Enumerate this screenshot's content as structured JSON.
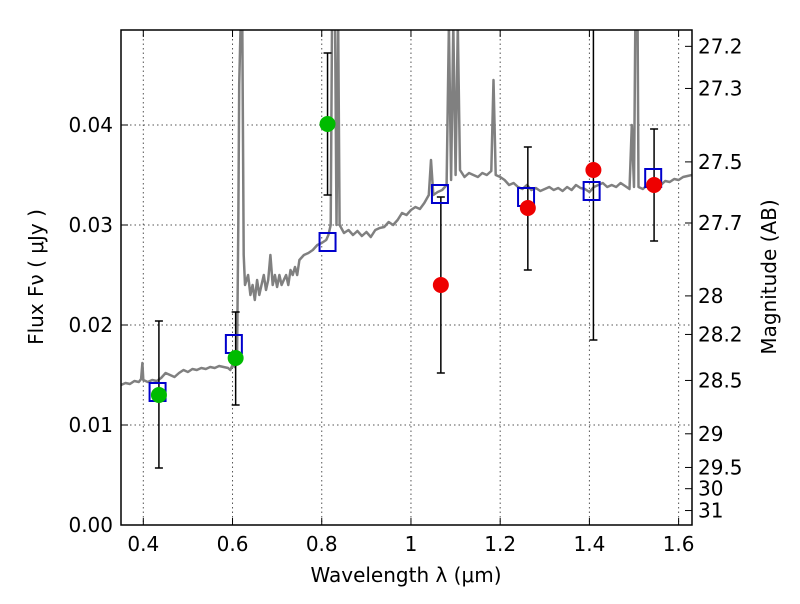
{
  "chart_data": {
    "type": "scatter",
    "xlabel": "Wavelength  λ (μm)",
    "ylabel": "Flux  Fν  ( μJy )",
    "y2label": "Magnitude (AB)",
    "xlim": [
      0.35,
      1.63
    ],
    "ylim": [
      0.0,
      0.0495
    ],
    "grid": true,
    "x_ticks": [
      {
        "value": 0.4,
        "label": "0.4"
      },
      {
        "value": 0.6,
        "label": "0.6"
      },
      {
        "value": 0.8,
        "label": "0.8"
      },
      {
        "value": 1.0,
        "label": "1"
      },
      {
        "value": 1.2,
        "label": "1.2"
      },
      {
        "value": 1.4,
        "label": "1.4"
      },
      {
        "value": 1.6,
        "label": "1.6"
      }
    ],
    "y_ticks": [
      {
        "value": 0.0,
        "label": "0.00"
      },
      {
        "value": 0.01,
        "label": "0.01"
      },
      {
        "value": 0.02,
        "label": "0.02"
      },
      {
        "value": 0.03,
        "label": "0.03"
      },
      {
        "value": 0.04,
        "label": "0.04"
      }
    ],
    "mag_ticks": [
      {
        "value": 27.2,
        "label": "27.2"
      },
      {
        "value": 27.3,
        "label": "27.3"
      },
      {
        "value": 27.5,
        "label": "27.5"
      },
      {
        "value": 27.7,
        "label": "27.7"
      },
      {
        "value": 28.0,
        "label": "28"
      },
      {
        "value": 28.2,
        "label": "28.2"
      },
      {
        "value": 28.5,
        "label": "28.5"
      },
      {
        "value": 29.0,
        "label": "29"
      },
      {
        "value": 29.5,
        "label": "29.5"
      },
      {
        "value": 30.0,
        "label": "30"
      },
      {
        "value": 31.0,
        "label": "31"
      }
    ],
    "colors": {
      "spectrum": "#808080",
      "model_box": "#0000cc",
      "green_point": "#00bb00",
      "red_point": "#ee0000",
      "errorbar": "#000000",
      "grid": "#555555"
    },
    "spectrum": [
      [
        0.35,
        0.014
      ],
      [
        0.36,
        0.0142
      ],
      [
        0.37,
        0.0141
      ],
      [
        0.38,
        0.0144
      ],
      [
        0.39,
        0.0143
      ],
      [
        0.395,
        0.0146
      ],
      [
        0.398,
        0.0162
      ],
      [
        0.4,
        0.0145
      ],
      [
        0.41,
        0.0143
      ],
      [
        0.42,
        0.0145
      ],
      [
        0.43,
        0.0144
      ],
      [
        0.44,
        0.0147
      ],
      [
        0.45,
        0.0152
      ],
      [
        0.46,
        0.015
      ],
      [
        0.47,
        0.0148
      ],
      [
        0.48,
        0.0152
      ],
      [
        0.49,
        0.0155
      ],
      [
        0.5,
        0.0153
      ],
      [
        0.51,
        0.0156
      ],
      [
        0.52,
        0.0155
      ],
      [
        0.53,
        0.0157
      ],
      [
        0.54,
        0.0156
      ],
      [
        0.55,
        0.0158
      ],
      [
        0.56,
        0.0157
      ],
      [
        0.57,
        0.0159
      ],
      [
        0.58,
        0.0158
      ],
      [
        0.59,
        0.0157
      ],
      [
        0.595,
        0.0155
      ],
      [
        0.6,
        0.016
      ],
      [
        0.605,
        0.0158
      ],
      [
        0.61,
        0.0162
      ],
      [
        0.613,
        0.03
      ],
      [
        0.615,
        0.044
      ],
      [
        0.618,
        0.05
      ],
      [
        0.622,
        0.05
      ],
      [
        0.625,
        0.027
      ],
      [
        0.628,
        0.024
      ],
      [
        0.635,
        0.025
      ],
      [
        0.64,
        0.023
      ],
      [
        0.645,
        0.024
      ],
      [
        0.65,
        0.0225
      ],
      [
        0.655,
        0.0245
      ],
      [
        0.66,
        0.023
      ],
      [
        0.665,
        0.024
      ],
      [
        0.67,
        0.025
      ],
      [
        0.675,
        0.0235
      ],
      [
        0.68,
        0.0245
      ],
      [
        0.685,
        0.027
      ],
      [
        0.69,
        0.024
      ],
      [
        0.695,
        0.025
      ],
      [
        0.7,
        0.0238
      ],
      [
        0.705,
        0.025
      ],
      [
        0.71,
        0.024
      ],
      [
        0.715,
        0.0245
      ],
      [
        0.72,
        0.025
      ],
      [
        0.725,
        0.024
      ],
      [
        0.73,
        0.0255
      ],
      [
        0.735,
        0.025
      ],
      [
        0.74,
        0.0258
      ],
      [
        0.745,
        0.025
      ],
      [
        0.75,
        0.0265
      ],
      [
        0.76,
        0.027
      ],
      [
        0.77,
        0.0272
      ],
      [
        0.78,
        0.0275
      ],
      [
        0.79,
        0.028
      ],
      [
        0.8,
        0.0282
      ],
      [
        0.81,
        0.0285
      ],
      [
        0.815,
        0.029
      ],
      [
        0.82,
        0.03
      ],
      [
        0.823,
        0.05
      ],
      [
        0.83,
        0.05
      ],
      [
        0.833,
        0.03
      ],
      [
        0.837,
        0.05
      ],
      [
        0.84,
        0.03
      ],
      [
        0.85,
        0.0292
      ],
      [
        0.86,
        0.0295
      ],
      [
        0.87,
        0.029
      ],
      [
        0.88,
        0.0294
      ],
      [
        0.89,
        0.0289
      ],
      [
        0.9,
        0.0293
      ],
      [
        0.91,
        0.0288
      ],
      [
        0.92,
        0.0295
      ],
      [
        0.93,
        0.0297
      ],
      [
        0.94,
        0.0298
      ],
      [
        0.95,
        0.0303
      ],
      [
        0.96,
        0.03
      ],
      [
        0.97,
        0.0305
      ],
      [
        0.98,
        0.0312
      ],
      [
        0.99,
        0.031
      ],
      [
        1.0,
        0.0315
      ],
      [
        1.01,
        0.0318
      ],
      [
        1.02,
        0.0316
      ],
      [
        1.03,
        0.0322
      ],
      [
        1.04,
        0.033
      ],
      [
        1.045,
        0.0365
      ],
      [
        1.05,
        0.033
      ],
      [
        1.06,
        0.0333
      ],
      [
        1.07,
        0.0335
      ],
      [
        1.08,
        0.034
      ],
      [
        1.085,
        0.05
      ],
      [
        1.09,
        0.0345
      ],
      [
        1.095,
        0.05
      ],
      [
        1.1,
        0.035
      ],
      [
        1.105,
        0.05
      ],
      [
        1.11,
        0.0355
      ],
      [
        1.12,
        0.0348
      ],
      [
        1.13,
        0.0352
      ],
      [
        1.14,
        0.035
      ],
      [
        1.15,
        0.0348
      ],
      [
        1.16,
        0.0352
      ],
      [
        1.17,
        0.035
      ],
      [
        1.18,
        0.0354
      ],
      [
        1.185,
        0.0445
      ],
      [
        1.19,
        0.035
      ],
      [
        1.2,
        0.0348
      ],
      [
        1.21,
        0.0345
      ],
      [
        1.22,
        0.034
      ],
      [
        1.23,
        0.0342
      ],
      [
        1.24,
        0.0338
      ],
      [
        1.25,
        0.0336
      ],
      [
        1.26,
        0.034
      ],
      [
        1.27,
        0.0335
      ],
      [
        1.28,
        0.0337
      ],
      [
        1.29,
        0.0334
      ],
      [
        1.3,
        0.0336
      ],
      [
        1.31,
        0.0338
      ],
      [
        1.32,
        0.0335
      ],
      [
        1.33,
        0.0337
      ],
      [
        1.34,
        0.0334
      ],
      [
        1.35,
        0.0338
      ],
      [
        1.36,
        0.0335
      ],
      [
        1.37,
        0.034
      ],
      [
        1.38,
        0.0337
      ],
      [
        1.39,
        0.0336
      ],
      [
        1.4,
        0.0333
      ],
      [
        1.41,
        0.0338
      ],
      [
        1.42,
        0.034
      ],
      [
        1.43,
        0.0342
      ],
      [
        1.44,
        0.0338
      ],
      [
        1.45,
        0.034
      ],
      [
        1.46,
        0.0338
      ],
      [
        1.47,
        0.0342
      ],
      [
        1.48,
        0.0339
      ],
      [
        1.49,
        0.0336
      ],
      [
        1.495,
        0.04
      ],
      [
        1.5,
        0.0338
      ],
      [
        1.503,
        0.05
      ],
      [
        1.508,
        0.05
      ],
      [
        1.51,
        0.0338
      ],
      [
        1.52,
        0.0336
      ],
      [
        1.53,
        0.034
      ],
      [
        1.54,
        0.0338
      ],
      [
        1.55,
        0.0342
      ],
      [
        1.56,
        0.034
      ],
      [
        1.57,
        0.0344
      ],
      [
        1.58,
        0.0343
      ],
      [
        1.59,
        0.0346
      ],
      [
        1.6,
        0.0345
      ],
      [
        1.61,
        0.0348
      ],
      [
        1.62,
        0.0349
      ],
      [
        1.63,
        0.035
      ]
    ],
    "model_boxes": [
      {
        "x": 0.432,
        "y": 0.0133
      },
      {
        "x": 0.603,
        "y": 0.0181
      },
      {
        "x": 0.813,
        "y": 0.0283
      },
      {
        "x": 1.065,
        "y": 0.0331
      },
      {
        "x": 1.258,
        "y": 0.0328
      },
      {
        "x": 1.405,
        "y": 0.0334
      },
      {
        "x": 1.543,
        "y": 0.0347
      }
    ],
    "observations": [
      {
        "x": 0.435,
        "y": 0.013,
        "yerr_low": 0.0057,
        "yerr_high": 0.0204,
        "color": "green"
      },
      {
        "x": 0.607,
        "y": 0.0167,
        "yerr_low": 0.012,
        "yerr_high": 0.0213,
        "color": "green"
      },
      {
        "x": 0.813,
        "y": 0.0401,
        "yerr_low": 0.033,
        "yerr_high": 0.0472,
        "color": "green"
      },
      {
        "x": 1.067,
        "y": 0.024,
        "yerr_low": 0.0152,
        "yerr_high": 0.0328,
        "color": "red"
      },
      {
        "x": 1.262,
        "y": 0.0317,
        "yerr_low": 0.0255,
        "yerr_high": 0.0378,
        "color": "red"
      },
      {
        "x": 1.409,
        "y": 0.0355,
        "yerr_low": 0.0185,
        "yerr_high": 0.05,
        "color": "red"
      },
      {
        "x": 1.545,
        "y": 0.034,
        "yerr_low": 0.0284,
        "yerr_high": 0.0396,
        "color": "red"
      }
    ]
  }
}
